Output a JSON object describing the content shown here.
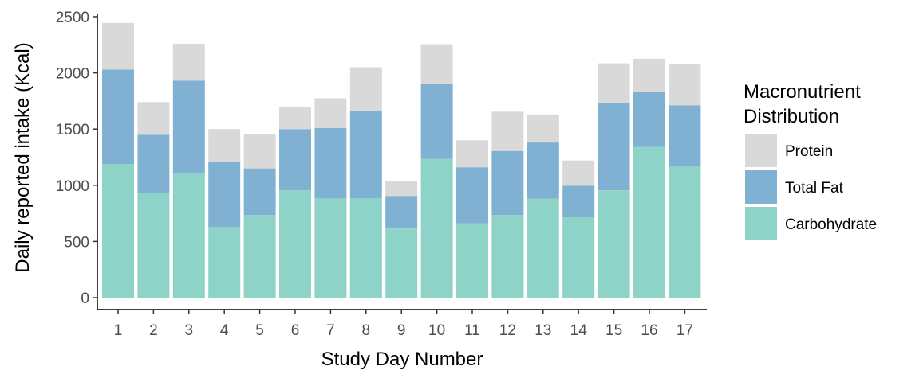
{
  "chart_data": {
    "type": "bar",
    "stacked": true,
    "xlabel": "Study Day Number",
    "ylabel": "Daily reported intake (Kcal)",
    "categories": [
      "1",
      "2",
      "3",
      "4",
      "5",
      "6",
      "7",
      "8",
      "9",
      "10",
      "11",
      "12",
      "13",
      "14",
      "15",
      "16",
      "17"
    ],
    "ylim": [
      0,
      2500
    ],
    "yticks": [
      0,
      500,
      1000,
      1500,
      2000,
      2500
    ],
    "grid": false,
    "legend": {
      "title_lines": [
        "Macronutrient",
        "Distribution"
      ],
      "position": "right"
    },
    "series": [
      {
        "name": "Carbohydrate",
        "color": "#8dd3c7",
        "values": [
          1190,
          935,
          1105,
          630,
          735,
          955,
          885,
          885,
          615,
          1235,
          660,
          735,
          880,
          715,
          955,
          1340,
          1170
        ]
      },
      {
        "name": "Total Fat",
        "color": "#80b1d3",
        "values": [
          840,
          515,
          825,
          575,
          415,
          545,
          625,
          775,
          290,
          665,
          500,
          570,
          500,
          280,
          775,
          490,
          540
        ]
      },
      {
        "name": "Protein",
        "color": "#d9d9d9",
        "values": [
          415,
          290,
          330,
          295,
          305,
          200,
          265,
          390,
          135,
          355,
          240,
          350,
          250,
          225,
          355,
          295,
          365
        ]
      }
    ],
    "legend_order": [
      "Protein",
      "Total Fat",
      "Carbohydrate"
    ]
  }
}
